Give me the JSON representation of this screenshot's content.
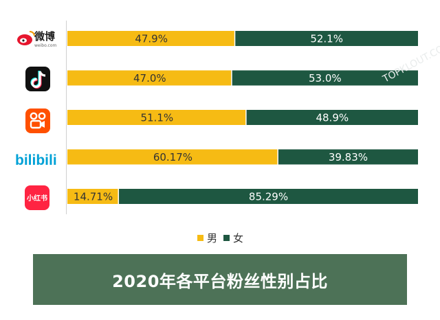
{
  "chart_data": {
    "type": "bar",
    "orientation": "horizontal",
    "stacked": true,
    "percent": true,
    "title": "2020年各平台粉丝性别占比",
    "categories": [
      "weibo",
      "douyin",
      "kuaishou",
      "bilibili",
      "xiaohongshu"
    ],
    "series": [
      {
        "name": "男",
        "color": "#f6bb14",
        "values": [
          47.9,
          47.0,
          51.1,
          60.17,
          14.71
        ],
        "labels": [
          "47.9%",
          "47.0%",
          "51.1%",
          "60.17%",
          "14.71%"
        ]
      },
      {
        "name": "女",
        "color": "#1e5741",
        "values": [
          52.1,
          53.0,
          48.9,
          39.83,
          85.29
        ],
        "labels": [
          "52.1%",
          "53.0%",
          "48.9%",
          "39.83%",
          "85.29%"
        ]
      }
    ],
    "xlim": [
      0,
      100
    ],
    "legend": "bottom",
    "grid": false
  },
  "logos": [
    {
      "icon": "weibo-logo-icon",
      "text": "微博",
      "sub": "weibo.com"
    },
    {
      "icon": "douyin-logo-icon",
      "text": ""
    },
    {
      "icon": "kuaishou-logo-icon",
      "text": ""
    },
    {
      "icon": "bilibili-logo-icon",
      "text": "bilibili"
    },
    {
      "icon": "xiaohongshu-logo-icon",
      "text": "小红书"
    }
  ],
  "watermark": "TOPKLOUT.COM"
}
